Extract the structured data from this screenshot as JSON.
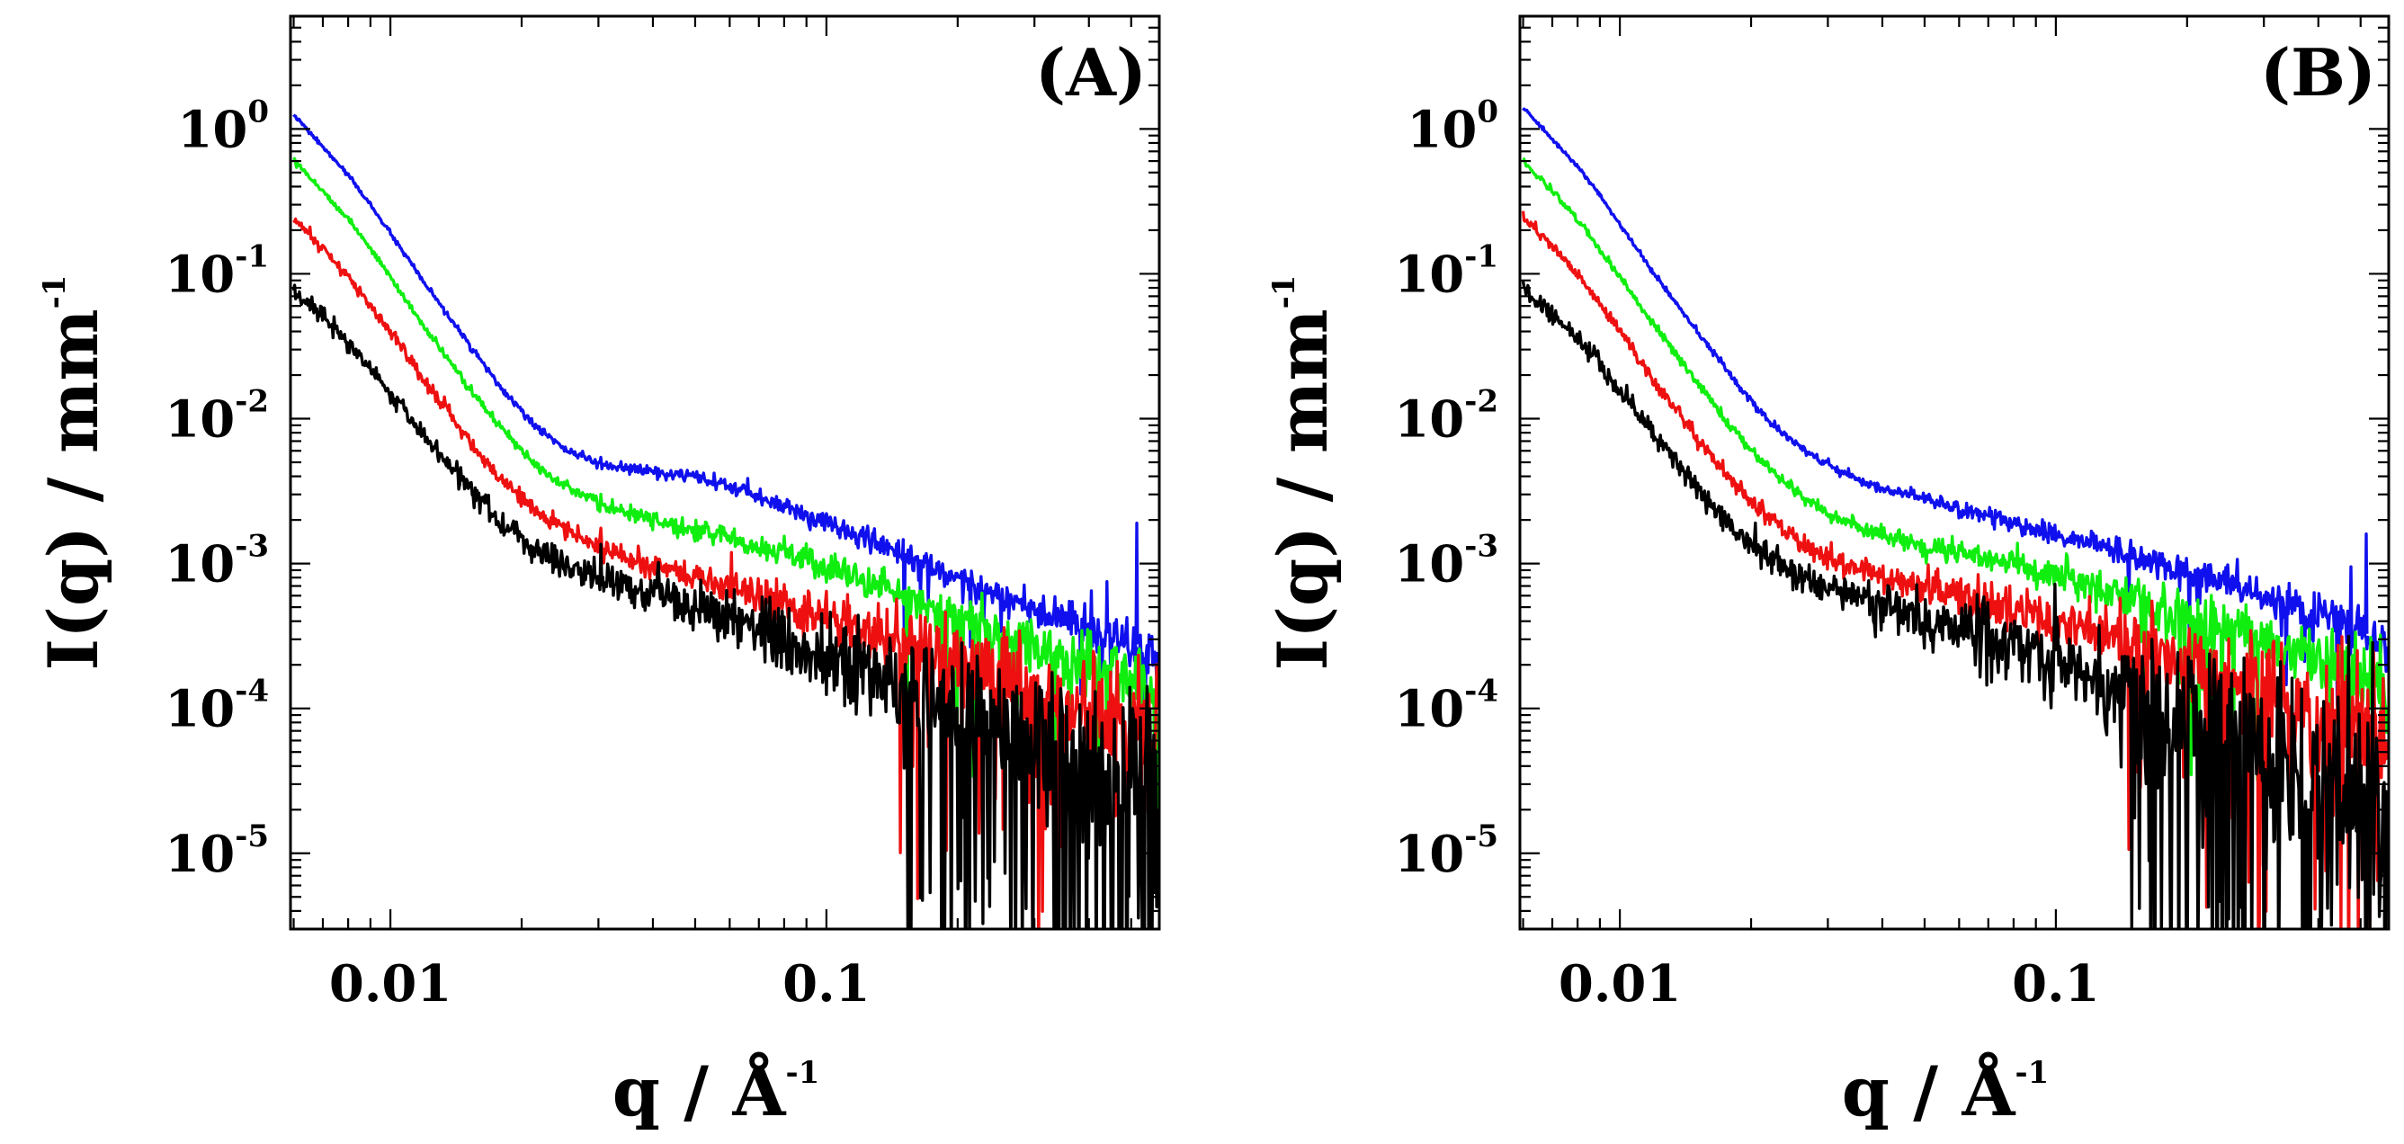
{
  "chart_data": [
    {
      "type": "line",
      "panel_label": "(A)",
      "xscale": "log",
      "yscale": "log",
      "xlim": [
        0.0059,
        0.58
      ],
      "ylim": [
        3e-06,
        6.0
      ],
      "xlabel": {
        "text": "q / Å",
        "sup": "-1"
      },
      "ylabel": {
        "text": "I(q) / mm",
        "sup": "-1"
      },
      "xticks": [
        {
          "label": "0.01",
          "value": 0.01
        },
        {
          "label": "0.1",
          "value": 0.1
        }
      ],
      "yticks": [
        {
          "base": "10",
          "exp": "0",
          "value": 1
        },
        {
          "base": "10",
          "exp": "-1",
          "value": 0.1
        },
        {
          "base": "10",
          "exp": "-2",
          "value": 0.01
        },
        {
          "base": "10",
          "exp": "-3",
          "value": 0.001
        },
        {
          "base": "10",
          "exp": "-4",
          "value": 0.0001
        },
        {
          "base": "10",
          "exp": "-5",
          "value": 1e-05
        }
      ],
      "series": [
        {
          "name": "blue",
          "color": "#1010ee",
          "x": [
            0.006,
            0.007,
            0.008,
            0.009,
            0.01,
            0.012,
            0.015,
            0.018,
            0.021,
            0.025,
            0.03,
            0.035,
            0.04,
            0.05,
            0.06,
            0.07,
            0.08,
            0.1,
            0.13,
            0.17,
            0.22,
            0.3,
            0.4,
            0.5,
            0.55,
            0.575
          ],
          "y": [
            1.25,
            0.75,
            0.48,
            0.3,
            0.19,
            0.085,
            0.034,
            0.016,
            0.0095,
            0.0062,
            0.0049,
            0.0045,
            0.0043,
            0.0039,
            0.0034,
            0.0029,
            0.0025,
            0.0019,
            0.0014,
            0.001,
            0.0007,
            0.00048,
            0.00036,
            0.00029,
            0.00025,
            0.00022
          ],
          "noise": 0.05
        },
        {
          "name": "green",
          "color": "#10ee10",
          "x": [
            0.006,
            0.007,
            0.008,
            0.009,
            0.01,
            0.012,
            0.015,
            0.018,
            0.021,
            0.025,
            0.03,
            0.035,
            0.04,
            0.05,
            0.06,
            0.07,
            0.08,
            0.1,
            0.13,
            0.17,
            0.22,
            0.3,
            0.4,
            0.5,
            0.55,
            0.575
          ],
          "y": [
            0.62,
            0.37,
            0.24,
            0.15,
            0.095,
            0.042,
            0.017,
            0.0085,
            0.0052,
            0.0035,
            0.0026,
            0.0022,
            0.002,
            0.0017,
            0.0015,
            0.0013,
            0.0012,
            0.00093,
            0.00072,
            0.00053,
            0.00039,
            0.00027,
            0.0002,
            0.00016,
            0.00014,
            0.00012
          ],
          "noise": 0.07
        },
        {
          "name": "red",
          "color": "#ee1010",
          "x": [
            0.006,
            0.007,
            0.008,
            0.009,
            0.01,
            0.012,
            0.015,
            0.018,
            0.021,
            0.025,
            0.03,
            0.035,
            0.04,
            0.05,
            0.06,
            0.07,
            0.08,
            0.1,
            0.13,
            0.17,
            0.22,
            0.3,
            0.4,
            0.5,
            0.55,
            0.575
          ],
          "y": [
            0.24,
            0.15,
            0.095,
            0.06,
            0.04,
            0.018,
            0.0075,
            0.0038,
            0.0025,
            0.0017,
            0.0013,
            0.0011,
            0.00095,
            0.0008,
            0.0007,
            0.0006,
            0.00052,
            0.00042,
            0.00033,
            0.00025,
            0.00019,
            0.00013,
            9.5e-05,
            7.5e-05,
            6.5e-05,
            6e-05
          ],
          "noise": 0.13
        },
        {
          "name": "black",
          "color": "#000000",
          "x": [
            0.006,
            0.007,
            0.008,
            0.009,
            0.01,
            0.012,
            0.015,
            0.018,
            0.021,
            0.025,
            0.03,
            0.035,
            0.04,
            0.05,
            0.06,
            0.07,
            0.08,
            0.1,
            0.13,
            0.17,
            0.22,
            0.3,
            0.4,
            0.5,
            0.55,
            0.575
          ],
          "y": [
            0.075,
            0.05,
            0.033,
            0.022,
            0.015,
            0.0075,
            0.0034,
            0.0019,
            0.0013,
            0.00095,
            0.00078,
            0.00068,
            0.0006,
            0.0005,
            0.00042,
            0.00036,
            0.0003,
            0.00024,
            0.00018,
            0.00013,
            9e-05,
            6e-05,
            4.2e-05,
            3.2e-05,
            2.8e-05,
            2.5e-05
          ],
          "noise": 0.2
        }
      ]
    },
    {
      "type": "line",
      "panel_label": "(B)",
      "xscale": "log",
      "yscale": "log",
      "xlim": [
        0.0059,
        0.58
      ],
      "ylim": [
        3e-06,
        6.0
      ],
      "xlabel": {
        "text": "q / Å",
        "sup": "-1"
      },
      "ylabel": {
        "text": "I(q) / mm",
        "sup": "-1"
      },
      "xticks": [
        {
          "label": "0.01",
          "value": 0.01
        },
        {
          "label": "0.1",
          "value": 0.1
        }
      ],
      "yticks": [
        {
          "base": "10",
          "exp": "0",
          "value": 1
        },
        {
          "base": "10",
          "exp": "-1",
          "value": 0.1
        },
        {
          "base": "10",
          "exp": "-2",
          "value": 0.01
        },
        {
          "base": "10",
          "exp": "-3",
          "value": 0.001
        },
        {
          "base": "10",
          "exp": "-4",
          "value": 0.0001
        },
        {
          "base": "10",
          "exp": "-5",
          "value": 1e-05
        }
      ],
      "series": [
        {
          "name": "blue",
          "color": "#1010ee",
          "x": [
            0.006,
            0.007,
            0.008,
            0.009,
            0.01,
            0.012,
            0.015,
            0.018,
            0.021,
            0.025,
            0.03,
            0.035,
            0.04,
            0.05,
            0.06,
            0.07,
            0.08,
            0.1,
            0.13,
            0.17,
            0.22,
            0.3,
            0.4,
            0.5,
            0.55,
            0.575
          ],
          "y": [
            1.4,
            0.85,
            0.55,
            0.35,
            0.22,
            0.1,
            0.04,
            0.02,
            0.011,
            0.0068,
            0.0048,
            0.0038,
            0.0033,
            0.0028,
            0.0024,
            0.0021,
            0.0019,
            0.0016,
            0.0013,
            0.001,
            0.0008,
            0.0006,
            0.00045,
            0.00034,
            0.0003,
            0.00027
          ],
          "noise": 0.05
        },
        {
          "name": "green",
          "color": "#10ee10",
          "x": [
            0.006,
            0.007,
            0.008,
            0.009,
            0.01,
            0.012,
            0.015,
            0.018,
            0.021,
            0.025,
            0.03,
            0.035,
            0.04,
            0.05,
            0.06,
            0.07,
            0.08,
            0.1,
            0.13,
            0.17,
            0.22,
            0.3,
            0.4,
            0.5,
            0.55,
            0.575
          ],
          "y": [
            0.6,
            0.37,
            0.24,
            0.15,
            0.095,
            0.044,
            0.018,
            0.0088,
            0.0052,
            0.0032,
            0.0022,
            0.0018,
            0.0016,
            0.0013,
            0.0012,
            0.0011,
            0.001,
            0.00083,
            0.00066,
            0.00052,
            0.0004,
            0.0003,
            0.00022,
            0.00017,
            0.00015,
            0.00013
          ],
          "noise": 0.08
        },
        {
          "name": "red",
          "color": "#ee1010",
          "x": [
            0.006,
            0.007,
            0.008,
            0.009,
            0.01,
            0.012,
            0.015,
            0.018,
            0.021,
            0.025,
            0.03,
            0.035,
            0.04,
            0.05,
            0.06,
            0.07,
            0.08,
            0.1,
            0.13,
            0.17,
            0.22,
            0.3,
            0.4,
            0.5,
            0.55,
            0.575
          ],
          "y": [
            0.25,
            0.155,
            0.1,
            0.063,
            0.04,
            0.018,
            0.0075,
            0.0038,
            0.0023,
            0.0015,
            0.0011,
            0.0009,
            0.0008,
            0.00068,
            0.0006,
            0.00053,
            0.00048,
            0.0004,
            0.00032,
            0.00025,
            0.00019,
            0.00014,
            0.0001,
            7.5e-05,
            6.5e-05,
            6e-05
          ],
          "noise": 0.13
        },
        {
          "name": "black",
          "color": "#000000",
          "x": [
            0.006,
            0.007,
            0.008,
            0.009,
            0.01,
            0.012,
            0.015,
            0.018,
            0.021,
            0.025,
            0.03,
            0.035,
            0.04,
            0.05,
            0.06,
            0.07,
            0.08,
            0.1,
            0.13,
            0.17,
            0.22,
            0.3,
            0.4,
            0.5,
            0.55,
            0.575
          ],
          "y": [
            0.08,
            0.052,
            0.035,
            0.024,
            0.016,
            0.0077,
            0.0033,
            0.0018,
            0.0012,
            0.00088,
            0.0007,
            0.0006,
            0.00052,
            0.00042,
            0.00036,
            0.0003,
            0.00026,
            0.0002,
            0.00015,
            0.00011,
            8e-05,
            5.5e-05,
            3.8e-05,
            2.8e-05,
            2.4e-05,
            2.2e-05
          ],
          "noise": 0.22
        }
      ]
    }
  ]
}
